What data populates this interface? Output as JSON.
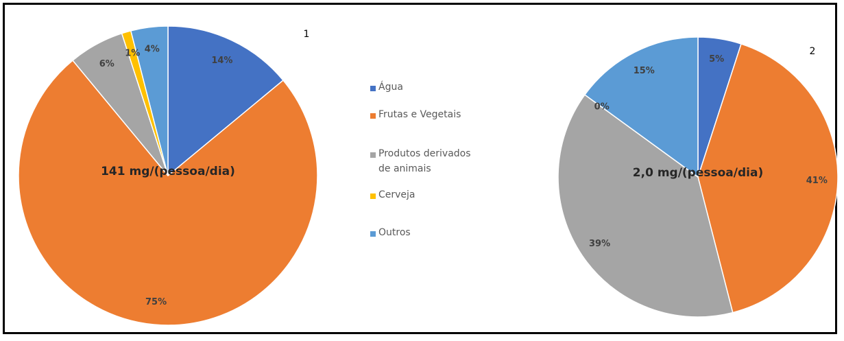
{
  "legend": {
    "labels": [
      "Água",
      "Frutas e Vegetais",
      "Produtos derivados de animais",
      "Cerveja",
      "Outros"
    ],
    "colors": [
      "#4472c4",
      "#ed7d31",
      "#a5a5a5",
      "#ffc000",
      "#5b9bd5"
    ]
  },
  "chart_data": [
    {
      "type": "pie",
      "title": "1",
      "annotation": "141 mg/(pessoa/dia)",
      "values": [
        14,
        75,
        6,
        1,
        4
      ],
      "value_labels": [
        "14%",
        "75%",
        "6%",
        "1%",
        "4%"
      ]
    },
    {
      "type": "pie",
      "title": "2",
      "annotation": "2,0 mg/(pessoa/dia)",
      "values": [
        5,
        41,
        39,
        0,
        15
      ],
      "value_labels": [
        "5%",
        "41%",
        "39%",
        "0%",
        "15%"
      ]
    }
  ]
}
